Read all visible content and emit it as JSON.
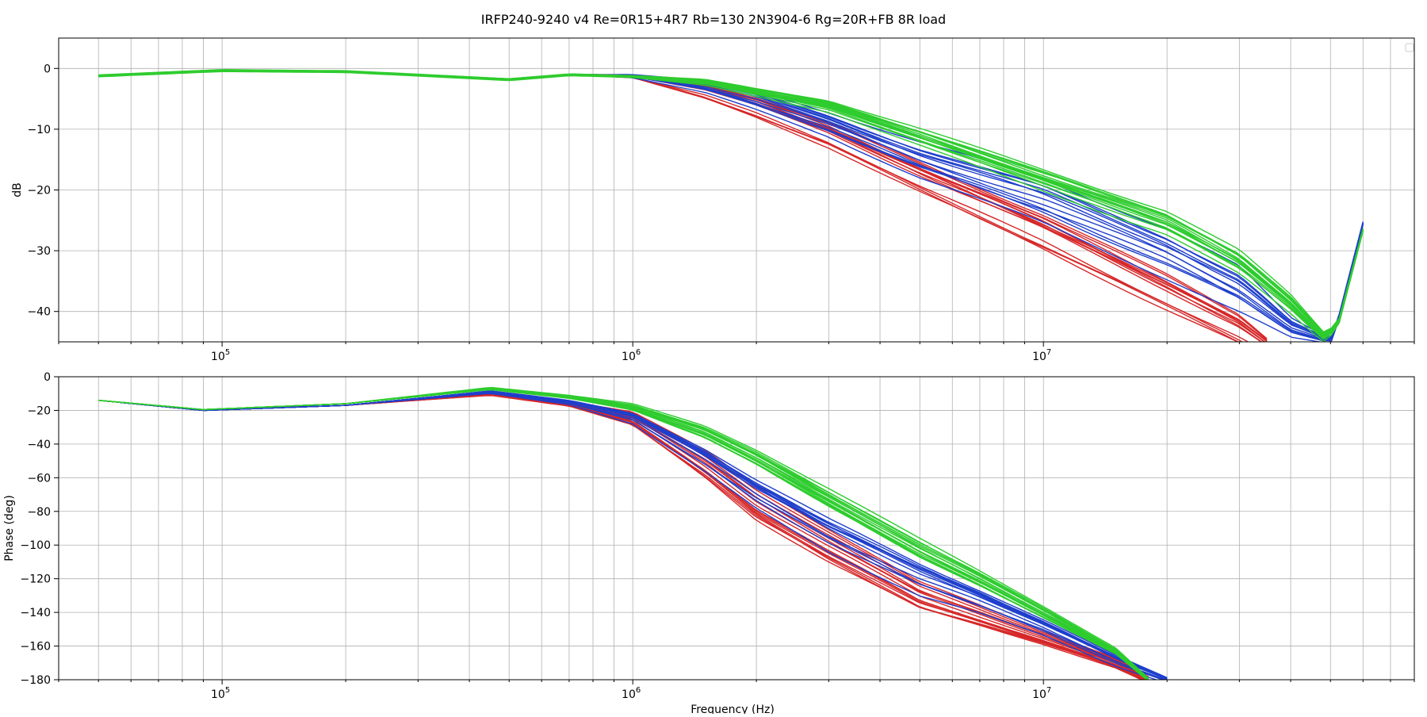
{
  "chart_data": [
    {
      "type": "line",
      "panel": "magnitude",
      "title": "IRFP240-9240 v4 Re=0R15+4R7 Rb=130 2N3904-6 Rg=20R+FB 8R load",
      "xlabel": "",
      "ylabel": "dB",
      "xscale": "log",
      "xlim": [
        40000,
        80000000
      ],
      "ylim": [
        -45,
        5
      ],
      "grid": true,
      "legend": "top-right, empty",
      "xticks": [
        100000,
        1000000,
        10000000
      ],
      "xtick_labels": [
        [
          "10",
          "5"
        ],
        [
          "10",
          "6"
        ],
        [
          "10",
          "7"
        ]
      ],
      "yticks": [
        0,
        -10,
        -20,
        -30,
        -40
      ],
      "ytick_labels": [
        "0",
        "−10",
        "−20",
        "−30",
        "−40"
      ],
      "series_colors": {
        "red": "#d62728",
        "blue": "#1f3fcc",
        "green": "#2ecc2e"
      },
      "series": [
        {
          "color": "red",
          "count": 14,
          "x": [
            50000,
            100000,
            200000,
            500000,
            700000,
            1000000,
            1500000,
            2000000,
            3000000,
            5000000,
            10000000,
            20000000,
            30000000,
            35000000
          ],
          "y": [
            -1.2,
            -0.3,
            -0.5,
            -1.8,
            -1.0,
            -1.3,
            -3.8,
            -6.5,
            -11.0,
            -18.0,
            -27.0,
            -37.0,
            -43.0,
            -46.0
          ],
          "spread": [
            0,
            0,
            0,
            0,
            0,
            0.3,
            1.5,
            2.0,
            2.5,
            3.0,
            3.5,
            3.5,
            3.0,
            2.0
          ]
        },
        {
          "color": "blue",
          "count": 12,
          "x": [
            50000,
            100000,
            200000,
            500000,
            700000,
            1000000,
            1500000,
            2000000,
            3000000,
            5000000,
            10000000,
            20000000,
            30000000,
            40000000,
            50000000,
            52000000,
            60000000
          ],
          "y": [
            -1.2,
            -0.3,
            -0.5,
            -1.8,
            -1.0,
            -1.3,
            -3.2,
            -5.5,
            -9.5,
            -15.5,
            -22.5,
            -31.0,
            -37.0,
            -43.0,
            -45.0,
            -42.0,
            -25.5
          ],
          "spread": [
            0,
            0,
            0,
            0,
            0,
            0.3,
            1.2,
            2.0,
            2.5,
            3.5,
            4.5,
            5.0,
            4.5,
            2.0,
            0.5,
            0.5,
            0.3
          ]
        },
        {
          "color": "green",
          "count": 16,
          "x": [
            50000,
            100000,
            200000,
            500000,
            700000,
            1000000,
            1500000,
            2000000,
            3000000,
            5000000,
            10000000,
            20000000,
            30000000,
            40000000,
            48000000,
            52000000,
            60000000
          ],
          "y": [
            -1.2,
            -0.3,
            -0.5,
            -1.8,
            -1.0,
            -1.3,
            -2.2,
            -3.8,
            -6.0,
            -11.0,
            -18.0,
            -25.0,
            -31.5,
            -38.5,
            -44.0,
            -42.5,
            -26.5
          ],
          "spread": [
            0.2,
            0.2,
            0.2,
            0.2,
            0.2,
            0.2,
            0.6,
            0.8,
            1.2,
            1.8,
            2.2,
            2.5,
            2.5,
            2.0,
            1.0,
            0.5,
            0.3
          ]
        }
      ]
    },
    {
      "type": "line",
      "panel": "phase",
      "title": "",
      "xlabel": "Frequency (Hz)",
      "ylabel": "Phase (deg)",
      "xscale": "log",
      "xlim": [
        40000,
        80000000
      ],
      "ylim": [
        -180,
        0
      ],
      "grid": true,
      "xticks": [
        100000,
        1000000,
        10000000
      ],
      "xtick_labels": [
        [
          "10",
          "5"
        ],
        [
          "10",
          "6"
        ],
        [
          "10",
          "7"
        ]
      ],
      "yticks": [
        0,
        -20,
        -40,
        -60,
        -80,
        -100,
        -120,
        -140,
        -160,
        -180
      ],
      "ytick_labels": [
        "0",
        "−20",
        "−40",
        "−60",
        "−80",
        "−100",
        "−120",
        "−140",
        "−160",
        "−180"
      ],
      "series_colors": {
        "red": "#d62728",
        "blue": "#1f3fcc",
        "green": "#2ecc2e"
      },
      "series": [
        {
          "color": "red",
          "count": 14,
          "x": [
            50000,
            90000,
            200000,
            450000,
            700000,
            1000000,
            1500000,
            2000000,
            3000000,
            5000000,
            7000000,
            10000000,
            15000000,
            18000000
          ],
          "y": [
            -14,
            -20,
            -17,
            -10,
            -16,
            -25,
            -52,
            -75,
            -100,
            -130,
            -142,
            -155,
            -170,
            -180
          ],
          "spread": [
            0,
            0,
            0,
            1,
            1.5,
            4,
            8,
            10,
            10,
            8,
            6,
            4,
            3,
            2
          ]
        },
        {
          "color": "blue",
          "count": 12,
          "x": [
            50000,
            90000,
            200000,
            450000,
            700000,
            1000000,
            1500000,
            2000000,
            3000000,
            5000000,
            7000000,
            10000000,
            15000000,
            20000000
          ],
          "y": [
            -14,
            -20,
            -17,
            -9,
            -15,
            -24,
            -48,
            -68,
            -92,
            -118,
            -132,
            -148,
            -168,
            -180
          ],
          "spread": [
            0,
            0,
            0,
            1,
            1.5,
            4,
            9,
            11,
            12,
            12,
            9,
            6,
            4,
            2
          ]
        },
        {
          "color": "green",
          "count": 16,
          "x": [
            50000,
            90000,
            200000,
            450000,
            700000,
            1000000,
            1500000,
            2000000,
            3000000,
            5000000,
            7000000,
            10000000,
            15000000,
            18000000
          ],
          "y": [
            -14,
            -19.5,
            -16,
            -7,
            -12,
            -18,
            -33,
            -48,
            -72,
            -102,
            -120,
            -140,
            -163,
            -180
          ],
          "spread": [
            0,
            0,
            0,
            0.8,
            1,
            2,
            4,
            5,
            6,
            6,
            5,
            4,
            2,
            1
          ]
        }
      ]
    }
  ]
}
